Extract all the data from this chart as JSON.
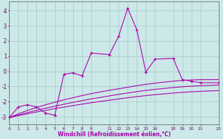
{
  "background_color": "#cce8e8",
  "grid_color": "#aacccc",
  "line_color": "#aa00aa",
  "xlabel": "Windchill (Refroidissement éolien,°C)",
  "xlim": [
    0,
    23
  ],
  "ylim": [
    -3.5,
    4.6
  ],
  "yticks": [
    -3,
    -2,
    -1,
    0,
    1,
    2,
    3,
    4
  ],
  "xticks": [
    0,
    1,
    2,
    3,
    4,
    5,
    6,
    7,
    8,
    9,
    11,
    12,
    13,
    14,
    15,
    16,
    18,
    19,
    20,
    21,
    23
  ],
  "series": [
    [
      0,
      -3.05
    ],
    [
      1,
      -2.35
    ],
    [
      2,
      -2.2
    ],
    [
      3,
      -2.35
    ],
    [
      4,
      -2.75
    ],
    [
      5,
      -2.9
    ],
    [
      6,
      -0.2
    ],
    [
      7,
      -0.1
    ],
    [
      8,
      -0.3
    ],
    [
      9,
      1.2
    ],
    [
      11,
      1.1
    ],
    [
      12,
      2.3
    ],
    [
      13,
      4.15
    ],
    [
      14,
      2.75
    ],
    [
      15,
      -0.05
    ],
    [
      16,
      0.8
    ],
    [
      18,
      0.85
    ],
    [
      19,
      -0.55
    ],
    [
      20,
      -0.65
    ],
    [
      21,
      -0.75
    ],
    [
      23,
      -0.75
    ]
  ],
  "smooth1": [
    [
      0,
      -3.05
    ],
    [
      1,
      -2.8
    ],
    [
      2,
      -2.58
    ],
    [
      3,
      -2.38
    ],
    [
      4,
      -2.2
    ],
    [
      5,
      -2.04
    ],
    [
      6,
      -1.88
    ],
    [
      7,
      -1.74
    ],
    [
      8,
      -1.6
    ],
    [
      9,
      -1.47
    ],
    [
      11,
      -1.25
    ],
    [
      12,
      -1.15
    ],
    [
      13,
      -1.05
    ],
    [
      14,
      -0.95
    ],
    [
      15,
      -0.86
    ],
    [
      16,
      -0.78
    ],
    [
      18,
      -0.65
    ],
    [
      19,
      -0.6
    ],
    [
      20,
      -0.57
    ],
    [
      21,
      -0.55
    ],
    [
      23,
      -0.55
    ]
  ],
  "smooth2": [
    [
      0,
      -3.05
    ],
    [
      1,
      -2.88
    ],
    [
      2,
      -2.72
    ],
    [
      3,
      -2.57
    ],
    [
      4,
      -2.43
    ],
    [
      5,
      -2.3
    ],
    [
      6,
      -2.17
    ],
    [
      7,
      -2.05
    ],
    [
      8,
      -1.93
    ],
    [
      9,
      -1.82
    ],
    [
      11,
      -1.62
    ],
    [
      12,
      -1.52
    ],
    [
      13,
      -1.43
    ],
    [
      14,
      -1.34
    ],
    [
      15,
      -1.26
    ],
    [
      16,
      -1.19
    ],
    [
      18,
      -1.07
    ],
    [
      19,
      -1.02
    ],
    [
      20,
      -0.98
    ],
    [
      21,
      -0.95
    ],
    [
      23,
      -0.9
    ]
  ],
  "smooth3": [
    [
      0,
      -3.05
    ],
    [
      1,
      -2.92
    ],
    [
      2,
      -2.8
    ],
    [
      3,
      -2.68
    ],
    [
      4,
      -2.57
    ],
    [
      5,
      -2.46
    ],
    [
      6,
      -2.36
    ],
    [
      7,
      -2.26
    ],
    [
      8,
      -2.16
    ],
    [
      9,
      -2.07
    ],
    [
      11,
      -1.9
    ],
    [
      12,
      -1.82
    ],
    [
      13,
      -1.74
    ],
    [
      14,
      -1.67
    ],
    [
      15,
      -1.6
    ],
    [
      16,
      -1.54
    ],
    [
      18,
      -1.43
    ],
    [
      19,
      -1.39
    ],
    [
      20,
      -1.35
    ],
    [
      21,
      -1.32
    ],
    [
      23,
      -1.27
    ]
  ]
}
